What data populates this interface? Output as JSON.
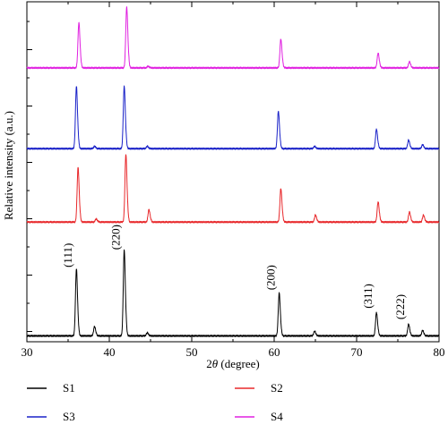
{
  "chart_data": {
    "type": "line",
    "xlabel_prefix": "2",
    "xlabel_theta": "θ",
    "xlabel_suffix": " (degree)",
    "ylabel": "Relative intensity (a.u.)",
    "xlim": [
      30,
      80
    ],
    "xticks": [
      30,
      40,
      50,
      60,
      70,
      80
    ],
    "grid": false,
    "legend_position": "bottom",
    "series": [
      {
        "name": "S1",
        "color": "#000000",
        "baseline": 0.0,
        "peaks": [
          {
            "x": 36.0,
            "h": 0.86
          },
          {
            "x": 38.2,
            "h": 0.12
          },
          {
            "x": 41.8,
            "h": 1.1
          },
          {
            "x": 44.6,
            "h": 0.04
          },
          {
            "x": 60.6,
            "h": 0.55
          },
          {
            "x": 64.9,
            "h": 0.06
          },
          {
            "x": 72.4,
            "h": 0.3
          },
          {
            "x": 76.3,
            "h": 0.15
          },
          {
            "x": 78.0,
            "h": 0.07
          }
        ]
      },
      {
        "name": "S2",
        "color": "#e8282b",
        "baseline": 1.55,
        "peaks": [
          {
            "x": 36.2,
            "h": 0.7
          },
          {
            "x": 38.4,
            "h": 0.04
          },
          {
            "x": 42.0,
            "h": 0.87
          },
          {
            "x": 44.8,
            "h": 0.16
          },
          {
            "x": 60.8,
            "h": 0.43
          },
          {
            "x": 65.0,
            "h": 0.09
          },
          {
            "x": 72.6,
            "h": 0.26
          },
          {
            "x": 76.4,
            "h": 0.13
          },
          {
            "x": 78.1,
            "h": 0.09
          }
        ]
      },
      {
        "name": "S3",
        "color": "#1a22c8",
        "baseline": 2.55,
        "peaks": [
          {
            "x": 36.0,
            "h": 0.8
          },
          {
            "x": 38.2,
            "h": 0.03
          },
          {
            "x": 41.8,
            "h": 0.8
          },
          {
            "x": 44.6,
            "h": 0.03
          },
          {
            "x": 60.5,
            "h": 0.48
          },
          {
            "x": 64.9,
            "h": 0.03
          },
          {
            "x": 72.4,
            "h": 0.25
          },
          {
            "x": 76.3,
            "h": 0.11
          },
          {
            "x": 78.0,
            "h": 0.05
          }
        ]
      },
      {
        "name": "S4",
        "color": "#e020e0",
        "baseline": 3.65,
        "peaks": [
          {
            "x": 36.3,
            "h": 0.58
          },
          {
            "x": 42.1,
            "h": 0.78
          },
          {
            "x": 44.7,
            "h": 0.02
          },
          {
            "x": 60.8,
            "h": 0.37
          },
          {
            "x": 72.6,
            "h": 0.19
          },
          {
            "x": 76.4,
            "h": 0.08
          }
        ]
      }
    ],
    "annotations": [
      {
        "text": "(111)",
        "x": 36.0,
        "series": "S1"
      },
      {
        "text": "(220)",
        "x": 41.8,
        "series": "S1"
      },
      {
        "text": "(200)",
        "x": 60.6,
        "series": "S1"
      },
      {
        "text": "(311)",
        "x": 72.4,
        "series": "S1"
      },
      {
        "text": "(222)",
        "x": 76.3,
        "series": "S1"
      }
    ]
  }
}
